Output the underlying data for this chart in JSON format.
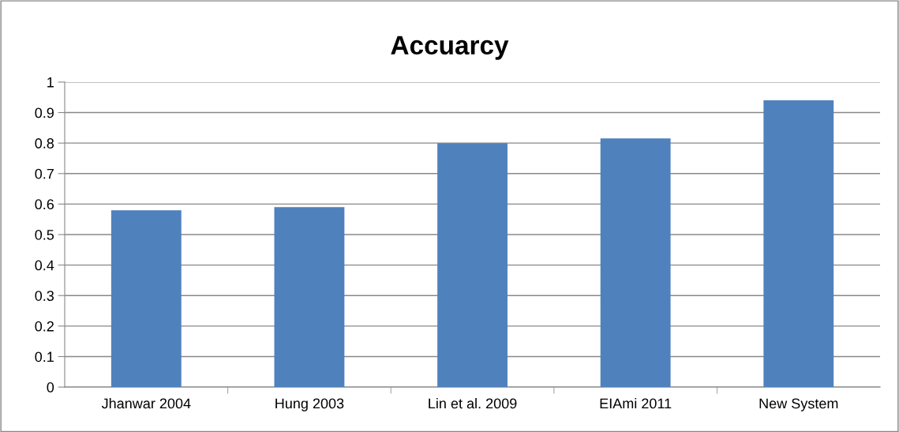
{
  "chart_data": {
    "type": "bar",
    "title": "Accuarcy",
    "categories": [
      "Jhanwar 2004",
      "Hung 2003",
      "Lin et al. 2009",
      "EIAmi 2011",
      "New System"
    ],
    "values": [
      0.58,
      0.59,
      0.8,
      0.815,
      0.94
    ],
    "color": "#4f81bd",
    "ylim": [
      0,
      1
    ],
    "yticks": [
      0,
      0.1,
      0.2,
      0.3,
      0.4,
      0.5,
      0.6,
      0.7,
      0.8,
      0.9,
      1
    ],
    "grid": "y",
    "legend": false
  }
}
